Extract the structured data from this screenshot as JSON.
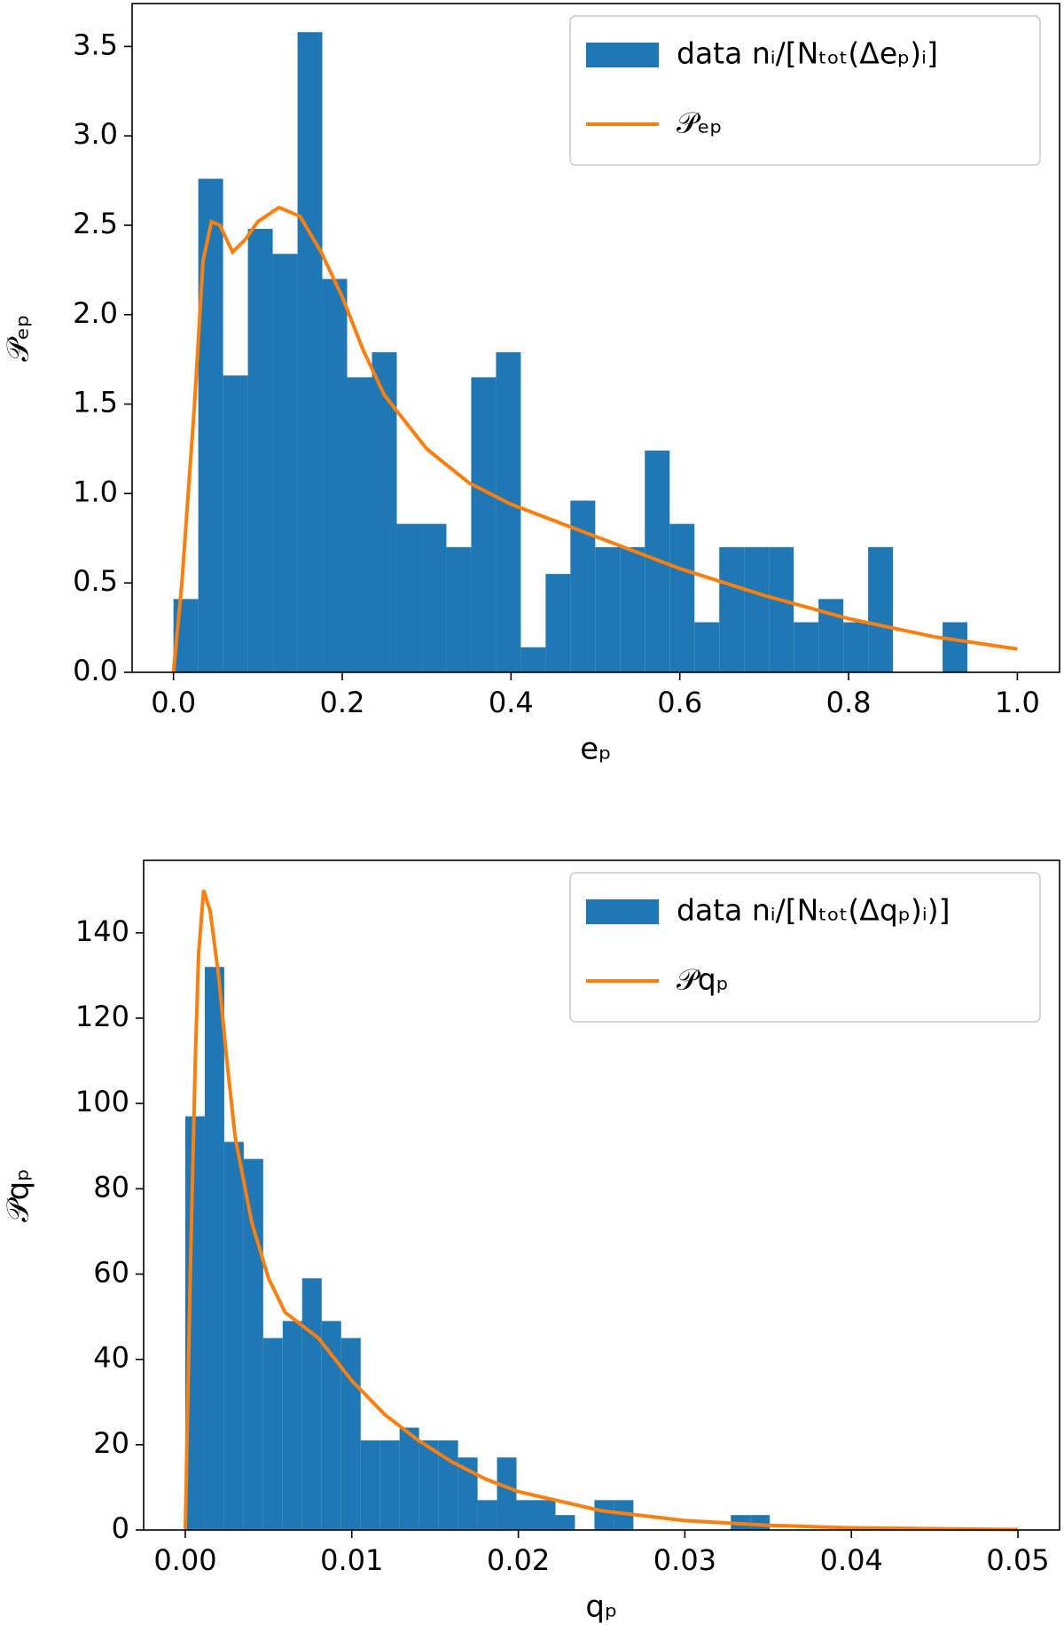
{
  "chart_data": [
    {
      "type": "histogram",
      "xlabel": "eₚ",
      "ylabel": "𝒫ₑₚ",
      "bins": [
        0,
        0.0294,
        0.0588,
        0.0882,
        0.1176,
        0.147,
        0.1764,
        0.2058,
        0.2352,
        0.2646,
        0.294,
        0.3234,
        0.3528,
        0.3822,
        0.4116,
        0.441,
        0.4704,
        0.4998,
        0.5292,
        0.5586,
        0.588,
        0.6174,
        0.6468,
        0.6762,
        0.7056,
        0.735,
        0.7644,
        0.7938,
        0.8232,
        0.8526,
        0.882,
        0.9114,
        0.9408
      ],
      "series": [
        {
          "name": "data nᵢ/[Nₜₒₜ(Δeₚ)ᵢ]",
          "color": "#1f77b4",
          "values": [
            0.41,
            2.76,
            1.66,
            2.48,
            2.34,
            3.58,
            2.2,
            1.65,
            1.79,
            0.83,
            0.83,
            0.7,
            1.65,
            1.79,
            0.14,
            0.55,
            0.96,
            0.7,
            0.7,
            1.24,
            0.83,
            0.28,
            0.7,
            0.7,
            0.7,
            0.28,
            0.41,
            0.28,
            0.7,
            0,
            0,
            0.28
          ]
        },
        {
          "name": "𝒫ₑₚ",
          "color": "#ff7f0e",
          "x": [
            0,
            0.01,
            0.025,
            0.035,
            0.045,
            0.055,
            0.07,
            0.085,
            0.1,
            0.125,
            0.15,
            0.175,
            0.2,
            0.225,
            0.25,
            0.3,
            0.35,
            0.4,
            0.45,
            0.5,
            0.6,
            0.7,
            0.8,
            0.9,
            1.0
          ],
          "values": [
            0,
            0.5,
            1.5,
            2.3,
            2.52,
            2.5,
            2.35,
            2.42,
            2.52,
            2.6,
            2.55,
            2.35,
            2.1,
            1.8,
            1.55,
            1.25,
            1.06,
            0.94,
            0.85,
            0.76,
            0.58,
            0.43,
            0.3,
            0.2,
            0.13
          ]
        }
      ],
      "xlim": [
        -0.049,
        1.05
      ],
      "ylim": [
        0,
        3.74
      ],
      "xticks": [
        {
          "value": 0,
          "label": "0.0"
        },
        0.2,
        0.4,
        0.6,
        0.8,
        {
          "value": 1,
          "label": "1.0"
        }
      ],
      "yticks": [
        {
          "value": 0,
          "label": "0.0"
        },
        0.5,
        {
          "value": 1,
          "label": "1.0"
        },
        1.5,
        {
          "value": 2,
          "label": "2.0"
        },
        2.5,
        {
          "value": 3,
          "label": "3.0"
        },
        3.5
      ],
      "legend": "upper right"
    },
    {
      "type": "histogram",
      "xlabel": "qₚ",
      "ylabel": "𝒫qₚ",
      "bins": [
        0,
        0.00117,
        0.00234,
        0.00351,
        0.00468,
        0.00585,
        0.00702,
        0.00819,
        0.00936,
        0.01053,
        0.0117,
        0.01287,
        0.01404,
        0.01521,
        0.01638,
        0.01755,
        0.01872,
        0.01989,
        0.02106,
        0.02223,
        0.0234,
        0.02457,
        0.02574,
        0.02691,
        0.02808,
        0.02925,
        0.03042,
        0.03159,
        0.03276,
        0.03393,
        0.0351
      ],
      "series": [
        {
          "name": "data nᵢ/[Nₜₒₜ(Δqₚ)ᵢ)]",
          "color": "#1f77b4",
          "values": [
            97,
            132,
            91,
            87,
            45,
            49,
            59,
            49,
            45,
            21,
            21,
            24,
            21,
            21,
            17,
            7,
            17,
            7,
            7,
            3.5,
            0,
            7,
            7,
            0,
            0,
            0,
            0,
            0,
            3.5,
            3.5
          ]
        },
        {
          "name": "𝒫qₚ",
          "color": "#ff7f0e",
          "x": [
            0,
            0.0003,
            0.0006,
            0.0008,
            0.0011,
            0.0015,
            0.002,
            0.0025,
            0.003,
            0.004,
            0.005,
            0.006,
            0.007,
            0.008,
            0.009,
            0.01,
            0.012,
            0.014,
            0.016,
            0.018,
            0.02,
            0.025,
            0.03,
            0.035,
            0.04,
            0.05
          ],
          "values": [
            0,
            60,
            110,
            135,
            150,
            145,
            130,
            110,
            92,
            72,
            59,
            51,
            48,
            45,
            40,
            35,
            27,
            21,
            16,
            12,
            9,
            4.5,
            2.2,
            1.1,
            0.5,
            0.1
          ]
        }
      ],
      "xlim": [
        -0.0025,
        0.0525
      ],
      "ylim": [
        0,
        157
      ],
      "xticks": [
        {
          "value": 0,
          "label": "0.00"
        },
        {
          "value": 0.01,
          "label": "0.01"
        },
        {
          "value": 0.02,
          "label": "0.02"
        },
        {
          "value": 0.03,
          "label": "0.03"
        },
        {
          "value": 0.04,
          "label": "0.04"
        },
        {
          "value": 0.05,
          "label": "0.05"
        }
      ],
      "yticks": [
        0,
        20,
        40,
        60,
        80,
        100,
        120,
        140
      ],
      "legend": "upper right"
    }
  ]
}
